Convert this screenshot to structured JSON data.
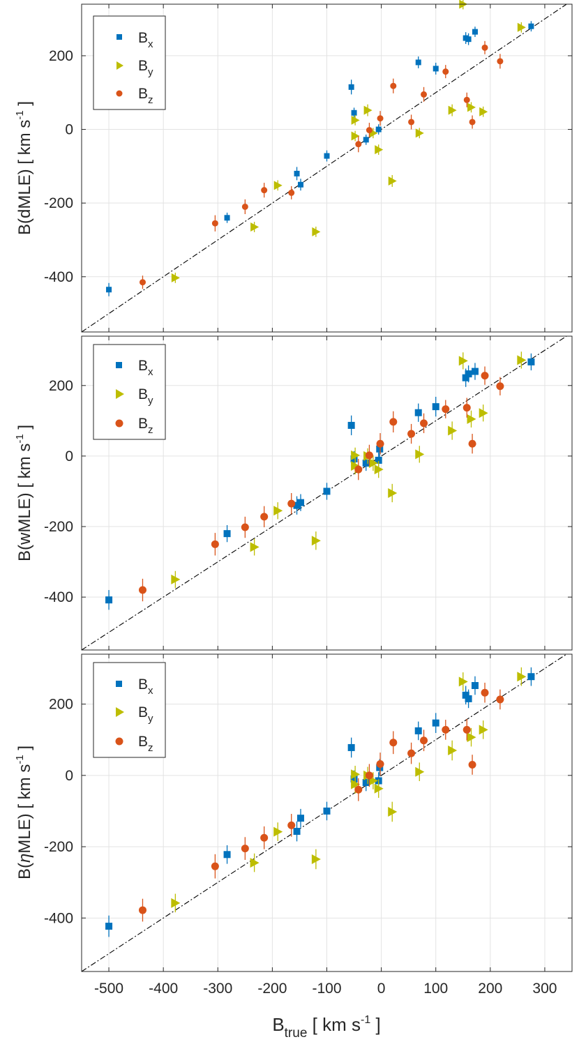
{
  "colors": {
    "Bx": "#0072BD",
    "By": "#BDBD00",
    "Bz": "#D95319"
  },
  "shared": {
    "xlim": [
      -550,
      350
    ],
    "xticks": [
      -500,
      -400,
      -300,
      -200,
      -100,
      0,
      100,
      200,
      300
    ],
    "xtick_labels": [
      "-500",
      "-400",
      "-300",
      "-200",
      "-100",
      "0",
      "100",
      "200",
      "300"
    ],
    "ylim": [
      -550,
      340
    ],
    "yticks": [
      -400,
      -200,
      0,
      200
    ],
    "ytick_labels": [
      "-400",
      "-200",
      "0",
      "200"
    ],
    "xlabel": {
      "main": "B",
      "sub": "true",
      "units_pre": "[ km s",
      "units_sup": "-1",
      "units_post": " ]"
    }
  },
  "legend": {
    "Bx": {
      "main": "B",
      "sub": "x"
    },
    "By": {
      "main": "B",
      "sub": "y"
    },
    "Bz": {
      "main": "B",
      "sub": "z"
    }
  },
  "panels": [
    {
      "ylabel": {
        "method": "B(dMLE)",
        "units_pre": "[ km s",
        "units_sup": "-1",
        "units_post": " ]"
      }
    },
    {
      "ylabel": {
        "method": "B(wMLE)",
        "units_pre": "[ km s",
        "units_sup": "-1",
        "units_post": " ]"
      }
    },
    {
      "ylabel": {
        "method_pre": "B(",
        "method_greek": "η",
        "method_post": "MLE)",
        "units_pre": "[ km s",
        "units_sup": "-1",
        "units_post": " ]"
      }
    }
  ],
  "chart_data": [
    {
      "type": "scatter",
      "title": "",
      "xlabel": "B_true [ km s^-1 ]",
      "ylabel": "B(dMLE) [ km s^-1 ]",
      "xlim": [
        -550,
        350
      ],
      "ylim": [
        -550,
        340
      ],
      "grid": true,
      "legend": "top-left",
      "reference_line": "y = x (dash-dot)",
      "series": [
        {
          "name": "Bx",
          "marker": "square",
          "points": [
            {
              "x": -500,
              "y": -435,
              "err": 18
            },
            {
              "x": -283,
              "y": -240,
              "err": 14
            },
            {
              "x": -155,
              "y": -120,
              "err": 18
            },
            {
              "x": -148,
              "y": -150,
              "err": 16
            },
            {
              "x": -100,
              "y": -72,
              "err": 15
            },
            {
              "x": -55,
              "y": 115,
              "err": 20
            },
            {
              "x": -50,
              "y": 45,
              "err": 14
            },
            {
              "x": -28,
              "y": -28,
              "err": 14
            },
            {
              "x": -5,
              "y": 0,
              "err": 14
            },
            {
              "x": 68,
              "y": 182,
              "err": 16
            },
            {
              "x": 100,
              "y": 165,
              "err": 16
            },
            {
              "x": 155,
              "y": 248,
              "err": 16
            },
            {
              "x": 160,
              "y": 245,
              "err": 16
            },
            {
              "x": 172,
              "y": 265,
              "err": 14
            },
            {
              "x": 275,
              "y": 280,
              "err": 14
            }
          ]
        },
        {
          "name": "By",
          "marker": "triangle-right",
          "points": [
            {
              "x": -378,
              "y": -403,
              "err": 14
            },
            {
              "x": -233,
              "y": -265,
              "err": 14
            },
            {
              "x": -190,
              "y": -152,
              "err": 14
            },
            {
              "x": -120,
              "y": -278,
              "err": 14
            },
            {
              "x": -48,
              "y": 25,
              "err": 14
            },
            {
              "x": -48,
              "y": -18,
              "err": 14
            },
            {
              "x": -25,
              "y": 52,
              "err": 16
            },
            {
              "x": -15,
              "y": -10,
              "err": 14
            },
            {
              "x": -5,
              "y": -55,
              "err": 14
            },
            {
              "x": 20,
              "y": -140,
              "err": 16
            },
            {
              "x": 70,
              "y": -10,
              "err": 14
            },
            {
              "x": 130,
              "y": 52,
              "err": 16
            },
            {
              "x": 150,
              "y": 340,
              "err": 14
            },
            {
              "x": 165,
              "y": 60,
              "err": 14
            },
            {
              "x": 187,
              "y": 48,
              "err": 14
            },
            {
              "x": 257,
              "y": 277,
              "err": 14
            }
          ]
        },
        {
          "name": "Bz",
          "marker": "circle",
          "points": [
            {
              "x": -438,
              "y": -415,
              "err": 18
            },
            {
              "x": -305,
              "y": -255,
              "err": 22
            },
            {
              "x": -250,
              "y": -210,
              "err": 20
            },
            {
              "x": -215,
              "y": -165,
              "err": 20
            },
            {
              "x": -165,
              "y": -172,
              "err": 18
            },
            {
              "x": -42,
              "y": -40,
              "err": 22
            },
            {
              "x": -22,
              "y": -2,
              "err": 20
            },
            {
              "x": 22,
              "y": 118,
              "err": 20
            },
            {
              "x": -2,
              "y": 30,
              "err": 20
            },
            {
              "x": 55,
              "y": 20,
              "err": 20
            },
            {
              "x": 78,
              "y": 95,
              "err": 20
            },
            {
              "x": 118,
              "y": 157,
              "err": 18
            },
            {
              "x": 157,
              "y": 80,
              "err": 20
            },
            {
              "x": 167,
              "y": 20,
              "err": 18
            },
            {
              "x": 190,
              "y": 222,
              "err": 18
            },
            {
              "x": 218,
              "y": 185,
              "err": 20
            }
          ]
        }
      ]
    },
    {
      "type": "scatter",
      "title": "",
      "xlabel": "B_true [ km s^-1 ]",
      "ylabel": "B(wMLE) [ km s^-1 ]",
      "xlim": [
        -550,
        350
      ],
      "ylim": [
        -550,
        340
      ],
      "grid": true,
      "legend": "top-left",
      "reference_line": "y = x (dash-dot)",
      "series": [
        {
          "name": "Bx",
          "marker": "square",
          "points": [
            {
              "x": -500,
              "y": -408,
              "err": 28
            },
            {
              "x": -283,
              "y": -220,
              "err": 24
            },
            {
              "x": -155,
              "y": -140,
              "err": 26
            },
            {
              "x": -148,
              "y": -132,
              "err": 24
            },
            {
              "x": -100,
              "y": -100,
              "err": 24
            },
            {
              "x": -55,
              "y": 87,
              "err": 28
            },
            {
              "x": -50,
              "y": -8,
              "err": 22
            },
            {
              "x": -28,
              "y": -20,
              "err": 22
            },
            {
              "x": -5,
              "y": -12,
              "err": 22
            },
            {
              "x": -3,
              "y": 20,
              "err": 22
            },
            {
              "x": 68,
              "y": 123,
              "err": 26
            },
            {
              "x": 100,
              "y": 140,
              "err": 28
            },
            {
              "x": 155,
              "y": 222,
              "err": 26
            },
            {
              "x": 160,
              "y": 233,
              "err": 24
            },
            {
              "x": 172,
              "y": 240,
              "err": 24
            },
            {
              "x": 275,
              "y": 267,
              "err": 24
            }
          ]
        },
        {
          "name": "By",
          "marker": "triangle-right",
          "points": [
            {
              "x": -378,
              "y": -350,
              "err": 24
            },
            {
              "x": -233,
              "y": -258,
              "err": 24
            },
            {
              "x": -190,
              "y": -155,
              "err": 24
            },
            {
              "x": -120,
              "y": -240,
              "err": 26
            },
            {
              "x": -48,
              "y": 2,
              "err": 22
            },
            {
              "x": -48,
              "y": -28,
              "err": 24
            },
            {
              "x": -25,
              "y": 0,
              "err": 22
            },
            {
              "x": -15,
              "y": -20,
              "err": 22
            },
            {
              "x": -5,
              "y": -38,
              "err": 24
            },
            {
              "x": 20,
              "y": -105,
              "err": 26
            },
            {
              "x": 70,
              "y": 5,
              "err": 24
            },
            {
              "x": 130,
              "y": 72,
              "err": 26
            },
            {
              "x": 150,
              "y": 270,
              "err": 24
            },
            {
              "x": 165,
              "y": 105,
              "err": 24
            },
            {
              "x": 187,
              "y": 122,
              "err": 24
            },
            {
              "x": 257,
              "y": 272,
              "err": 24
            }
          ]
        },
        {
          "name": "Bz",
          "marker": "circle",
          "points": [
            {
              "x": -438,
              "y": -380,
              "err": 32
            },
            {
              "x": -305,
              "y": -250,
              "err": 32
            },
            {
              "x": -250,
              "y": -202,
              "err": 30
            },
            {
              "x": -215,
              "y": -172,
              "err": 30
            },
            {
              "x": -165,
              "y": -135,
              "err": 30
            },
            {
              "x": -42,
              "y": -38,
              "err": 30
            },
            {
              "x": -22,
              "y": 2,
              "err": 30
            },
            {
              "x": 22,
              "y": 97,
              "err": 30
            },
            {
              "x": -2,
              "y": 35,
              "err": 30
            },
            {
              "x": 55,
              "y": 63,
              "err": 28
            },
            {
              "x": 78,
              "y": 93,
              "err": 28
            },
            {
              "x": 118,
              "y": 133,
              "err": 26
            },
            {
              "x": 157,
              "y": 137,
              "err": 28
            },
            {
              "x": 167,
              "y": 35,
              "err": 28
            },
            {
              "x": 190,
              "y": 228,
              "err": 26
            },
            {
              "x": 218,
              "y": 198,
              "err": 26
            }
          ]
        }
      ]
    },
    {
      "type": "scatter",
      "title": "",
      "xlabel": "B_true [ km s^-1 ]",
      "ylabel": "B(ηMLE) [ km s^-1 ]",
      "xlim": [
        -550,
        350
      ],
      "ylim": [
        -550,
        340
      ],
      "grid": true,
      "legend": "top-left",
      "reference_line": "y = x (dash-dot)",
      "series": [
        {
          "name": "Bx",
          "marker": "square",
          "points": [
            {
              "x": -500,
              "y": -423,
              "err": 30
            },
            {
              "x": -283,
              "y": -222,
              "err": 26
            },
            {
              "x": -155,
              "y": -157,
              "err": 28
            },
            {
              "x": -148,
              "y": -120,
              "err": 26
            },
            {
              "x": -100,
              "y": -100,
              "err": 26
            },
            {
              "x": -55,
              "y": 78,
              "err": 28
            },
            {
              "x": -50,
              "y": -10,
              "err": 24
            },
            {
              "x": -28,
              "y": -20,
              "err": 24
            },
            {
              "x": -5,
              "y": -15,
              "err": 24
            },
            {
              "x": -3,
              "y": 22,
              "err": 24
            },
            {
              "x": 68,
              "y": 125,
              "err": 26
            },
            {
              "x": 100,
              "y": 147,
              "err": 28
            },
            {
              "x": 155,
              "y": 225,
              "err": 26
            },
            {
              "x": 160,
              "y": 215,
              "err": 26
            },
            {
              "x": 172,
              "y": 252,
              "err": 26
            },
            {
              "x": 275,
              "y": 277,
              "err": 26
            }
          ]
        },
        {
          "name": "By",
          "marker": "triangle-right",
          "points": [
            {
              "x": -378,
              "y": -358,
              "err": 26
            },
            {
              "x": -233,
              "y": -245,
              "err": 26
            },
            {
              "x": -190,
              "y": -158,
              "err": 26
            },
            {
              "x": -120,
              "y": -235,
              "err": 28
            },
            {
              "x": -48,
              "y": 3,
              "err": 24
            },
            {
              "x": -48,
              "y": -25,
              "err": 26
            },
            {
              "x": -25,
              "y": 0,
              "err": 24
            },
            {
              "x": -15,
              "y": -15,
              "err": 24
            },
            {
              "x": -5,
              "y": -37,
              "err": 26
            },
            {
              "x": 20,
              "y": -102,
              "err": 28
            },
            {
              "x": 70,
              "y": 10,
              "err": 26
            },
            {
              "x": 130,
              "y": 70,
              "err": 28
            },
            {
              "x": 150,
              "y": 263,
              "err": 26
            },
            {
              "x": 165,
              "y": 107,
              "err": 26
            },
            {
              "x": 187,
              "y": 128,
              "err": 26
            },
            {
              "x": 257,
              "y": 277,
              "err": 26
            }
          ]
        },
        {
          "name": "Bz",
          "marker": "circle",
          "points": [
            {
              "x": -438,
              "y": -378,
              "err": 32
            },
            {
              "x": -305,
              "y": -255,
              "err": 34
            },
            {
              "x": -250,
              "y": -205,
              "err": 32
            },
            {
              "x": -215,
              "y": -175,
              "err": 32
            },
            {
              "x": -165,
              "y": -140,
              "err": 32
            },
            {
              "x": -42,
              "y": -40,
              "err": 32
            },
            {
              "x": -22,
              "y": 0,
              "err": 32
            },
            {
              "x": 22,
              "y": 92,
              "err": 32
            },
            {
              "x": -2,
              "y": 32,
              "err": 32
            },
            {
              "x": 55,
              "y": 62,
              "err": 30
            },
            {
              "x": 78,
              "y": 98,
              "err": 30
            },
            {
              "x": 118,
              "y": 128,
              "err": 28
            },
            {
              "x": 157,
              "y": 128,
              "err": 30
            },
            {
              "x": 167,
              "y": 30,
              "err": 28
            },
            {
              "x": 190,
              "y": 232,
              "err": 28
            },
            {
              "x": 218,
              "y": 213,
              "err": 28
            }
          ]
        }
      ]
    }
  ]
}
